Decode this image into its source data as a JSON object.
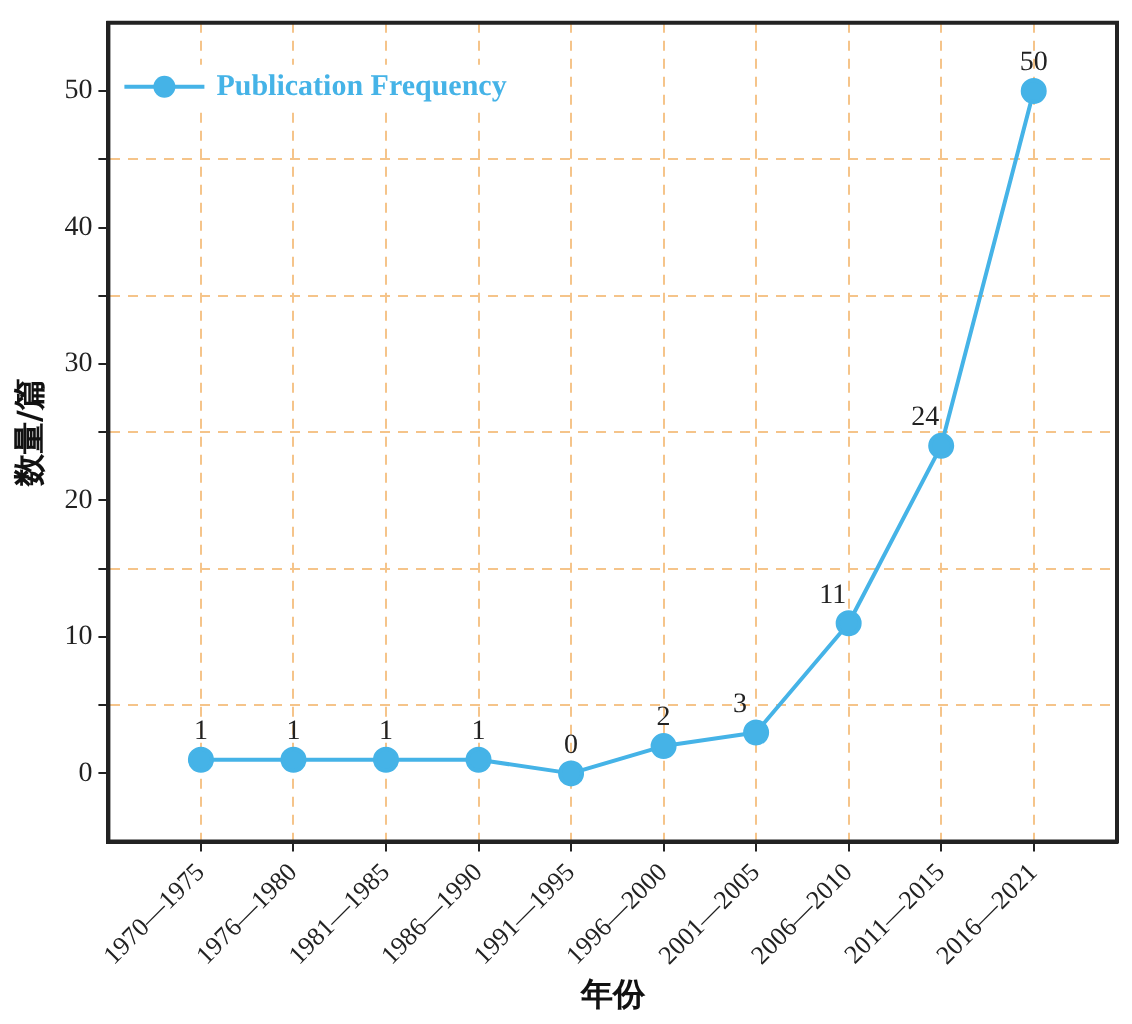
{
  "chart_data": {
    "type": "line",
    "xlabel": "年份",
    "ylabel": "数量/篇",
    "categories": [
      "1970—1975",
      "1976—1980",
      "1981—1985",
      "1986—1990",
      "1991—1995",
      "1996—2000",
      "2001—2005",
      "2006—2010",
      "2011—2015",
      "2016—2021"
    ],
    "series": [
      {
        "name": "Publication Frequency",
        "color": "#45b3e7",
        "values": [
          1,
          1,
          1,
          1,
          0,
          2,
          3,
          11,
          24,
          50
        ]
      }
    ],
    "ylim": [
      -5,
      55
    ],
    "yticks": [
      0,
      {
        "value": 5,
        "label": null
      },
      10,
      {
        "value": 15,
        "label": null
      },
      20,
      {
        "value": 25,
        "label": null
      },
      30,
      {
        "value": 35,
        "label": null
      },
      40,
      {
        "value": 45,
        "label": null
      },
      50
    ],
    "grid": true,
    "legend": "top left",
    "marker": "circle",
    "line_style": "solid",
    "data_labels": true
  }
}
